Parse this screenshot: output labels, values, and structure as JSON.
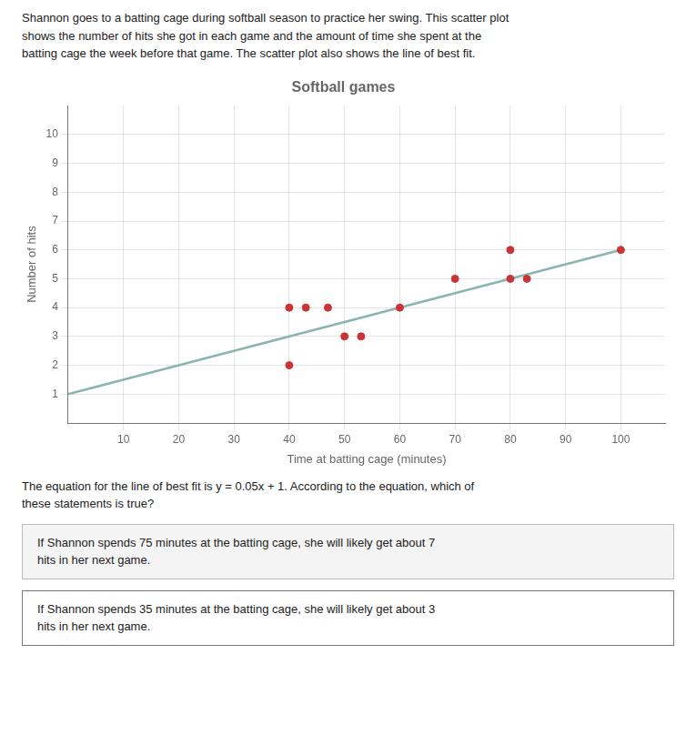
{
  "chart_data": {
    "type": "scatter",
    "title": "Softball games",
    "xlabel": "Time at batting cage (minutes)",
    "ylabel": "Number of hits",
    "series": [
      {
        "type": "scatter",
        "color": "#cc3333",
        "x": [
          40,
          43,
          47,
          40,
          50,
          53,
          60,
          70,
          80,
          83,
          80,
          100
        ],
        "values": [
          4,
          4,
          4,
          2,
          3,
          3,
          4,
          5,
          5,
          5,
          6,
          6
        ]
      },
      {
        "type": "line",
        "color": "#8ab5ae",
        "x": [
          0,
          100
        ],
        "values": [
          1,
          6
        ]
      }
    ],
    "xlim": [
      0,
      108
    ],
    "ylim": [
      0,
      11
    ],
    "xticks": [
      10,
      20,
      30,
      40,
      50,
      60,
      70,
      80,
      90,
      100
    ],
    "yticks": [
      1,
      2,
      3,
      4,
      5,
      6,
      7,
      8,
      9,
      10
    ],
    "grid": true,
    "annotations": [
      "Shannon goes to a batting cage during softball season to practice her swing. This scatter plot\nshows the number of hits she got in each game and the amount of time she spent at the\nbatting cage the week before that game. The scatter plot also shows the line of best fit.",
      "The equation for the line of best fit is y = 0.05x + 1. According to the equation, which of\nthese statements is true?",
      "If Shannon spends 75 minutes at the batting cage, she will likely get about 7\nhits in her next game.",
      "If Shannon spends 35 minutes at the batting cage, she will likely get about 3\nhits in her next game."
    ]
  }
}
